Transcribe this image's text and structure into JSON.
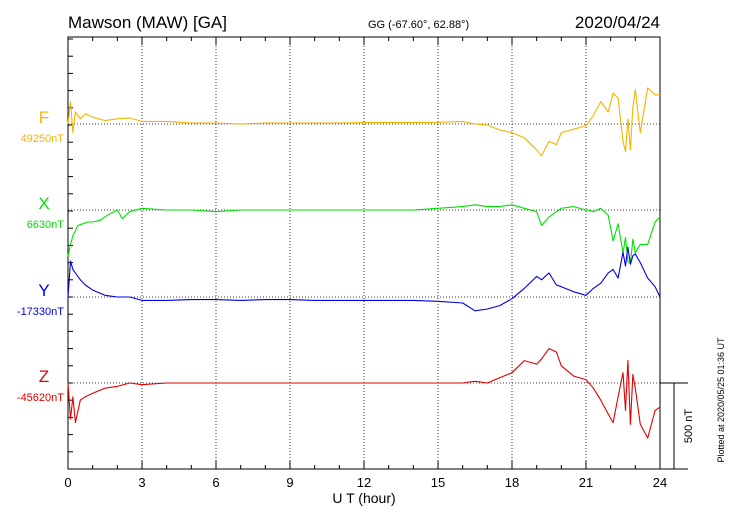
{
  "header": {
    "station": "Mawson (MAW)  [GA]",
    "coords": "GG (-67.60°,  62.88°)",
    "date": "2020/04/24"
  },
  "footer": {
    "plotted": "Plotted at 2020/05/25 01:36 UT"
  },
  "chart_data": {
    "type": "line",
    "xlabel": "U T (hour)",
    "xlim": [
      0,
      24
    ],
    "xticks": [
      0,
      3,
      6,
      9,
      12,
      15,
      18,
      21,
      24
    ],
    "scale_bar": {
      "label": "500 nT",
      "value_nT": 500
    },
    "colors": {
      "F": "#f5b400",
      "X": "#00e000",
      "Y": "#0000e0",
      "Z": "#e00000"
    },
    "series": [
      {
        "name": "F",
        "baseline_label": "49250nT",
        "baseline": 49250,
        "x": [
          0,
          0.1,
          0.2,
          0.3,
          0.5,
          0.7,
          1,
          1.5,
          2,
          2.5,
          3,
          4,
          5,
          6,
          7,
          8,
          9,
          10,
          11,
          12,
          13,
          14,
          15,
          16,
          16.5,
          17,
          17.5,
          18,
          18.5,
          19,
          19.2,
          19.5,
          19.8,
          20,
          20.5,
          21,
          21.3,
          21.6,
          21.9,
          22.1,
          22.3,
          22.5,
          22.6,
          22.7,
          22.8,
          22.9,
          23,
          23.2,
          23.5,
          23.8,
          24
        ],
        "y": [
          49250,
          49380,
          49200,
          49320,
          49280,
          49310,
          49290,
          49270,
          49280,
          49285,
          49265,
          49265,
          49255,
          49255,
          49250,
          49255,
          49255,
          49255,
          49255,
          49258,
          49258,
          49258,
          49260,
          49265,
          49250,
          49245,
          49215,
          49200,
          49170,
          49100,
          49065,
          49150,
          49130,
          49200,
          49220,
          49240,
          49300,
          49380,
          49320,
          49430,
          49400,
          49150,
          49090,
          49280,
          49100,
          49350,
          49450,
          49200,
          49460,
          49420,
          49420
        ]
      },
      {
        "name": "X",
        "baseline_label": "6630nT",
        "baseline": 6630,
        "x": [
          0,
          0.1,
          0.2,
          0.4,
          0.6,
          0.8,
          1,
          1.3,
          1.6,
          2,
          2.2,
          2.5,
          3,
          4,
          5,
          6,
          7,
          8,
          9,
          10,
          11,
          12,
          13,
          14,
          15,
          16,
          16.5,
          17,
          17.5,
          18,
          18.5,
          19,
          19.2,
          19.5,
          19.8,
          20,
          20.5,
          21,
          21.3,
          21.6,
          21.9,
          22.1,
          22.3,
          22.5,
          22.6,
          22.7,
          22.8,
          22.9,
          23,
          23.2,
          23.5,
          23.8,
          24
        ],
        "y": [
          6360,
          6430,
          6480,
          6540,
          6550,
          6560,
          6560,
          6570,
          6600,
          6630,
          6580,
          6620,
          6640,
          6630,
          6630,
          6620,
          6630,
          6630,
          6630,
          6630,
          6630,
          6630,
          6630,
          6630,
          6640,
          6650,
          6660,
          6650,
          6650,
          6660,
          6640,
          6620,
          6540,
          6590,
          6620,
          6640,
          6650,
          6630,
          6620,
          6640,
          6600,
          6450,
          6550,
          6380,
          6470,
          6330,
          6320,
          6460,
          6380,
          6430,
          6430,
          6560,
          6590
        ]
      },
      {
        "name": "Y",
        "baseline_label": "-17330nT",
        "baseline": -17330,
        "x": [
          0,
          0.1,
          0.2,
          0.3,
          0.5,
          0.7,
          1,
          1.5,
          2,
          2.5,
          3,
          4,
          5,
          6,
          7,
          8,
          9,
          10,
          11,
          12,
          13,
          14,
          15,
          16,
          16.5,
          17,
          17.5,
          18,
          18.5,
          19,
          19.2,
          19.5,
          19.8,
          20,
          20.5,
          21,
          21.3,
          21.6,
          21.9,
          22.1,
          22.3,
          22.5,
          22.6,
          22.7,
          22.8,
          22.9,
          23,
          23.2,
          23.5,
          23.8,
          24
        ],
        "y": [
          -17330,
          -17120,
          -17170,
          -17190,
          -17230,
          -17260,
          -17290,
          -17320,
          -17330,
          -17330,
          -17350,
          -17350,
          -17345,
          -17345,
          -17350,
          -17345,
          -17345,
          -17350,
          -17350,
          -17350,
          -17350,
          -17350,
          -17355,
          -17365,
          -17410,
          -17400,
          -17380,
          -17340,
          -17280,
          -17210,
          -17230,
          -17190,
          -17260,
          -17270,
          -17300,
          -17320,
          -17280,
          -17250,
          -17190,
          -17170,
          -17220,
          -17070,
          -17150,
          -17040,
          -17140,
          -17090,
          -17080,
          -17130,
          -17220,
          -17270,
          -17330
        ]
      },
      {
        "name": "Z",
        "baseline_label": "-45620nT",
        "baseline": -45620,
        "x": [
          0,
          0.1,
          0.2,
          0.3,
          0.5,
          0.7,
          1,
          1.5,
          2,
          2.5,
          3,
          4,
          5,
          6,
          7,
          8,
          9,
          10,
          11,
          12,
          13,
          14,
          15,
          16,
          16.5,
          17,
          17.5,
          18,
          18.5,
          19,
          19.2,
          19.5,
          19.8,
          20,
          20.5,
          21,
          21.3,
          21.6,
          21.9,
          22.1,
          22.3,
          22.5,
          22.6,
          22.7,
          22.8,
          22.9,
          23,
          23.2,
          23.5,
          23.8,
          24
        ],
        "y": [
          -45620,
          -45830,
          -45700,
          -45850,
          -45720,
          -45700,
          -45680,
          -45650,
          -45640,
          -45620,
          -45630,
          -45620,
          -45620,
          -45620,
          -45620,
          -45620,
          -45620,
          -45620,
          -45620,
          -45620,
          -45620,
          -45620,
          -45620,
          -45620,
          -45610,
          -45620,
          -45590,
          -45560,
          -45490,
          -45510,
          -45480,
          -45420,
          -45440,
          -45520,
          -45580,
          -45600,
          -45650,
          -45720,
          -45800,
          -45850,
          -45700,
          -45560,
          -45780,
          -45490,
          -45860,
          -45570,
          -45650,
          -45860,
          -45940,
          -45780,
          -45760
        ]
      }
    ]
  }
}
